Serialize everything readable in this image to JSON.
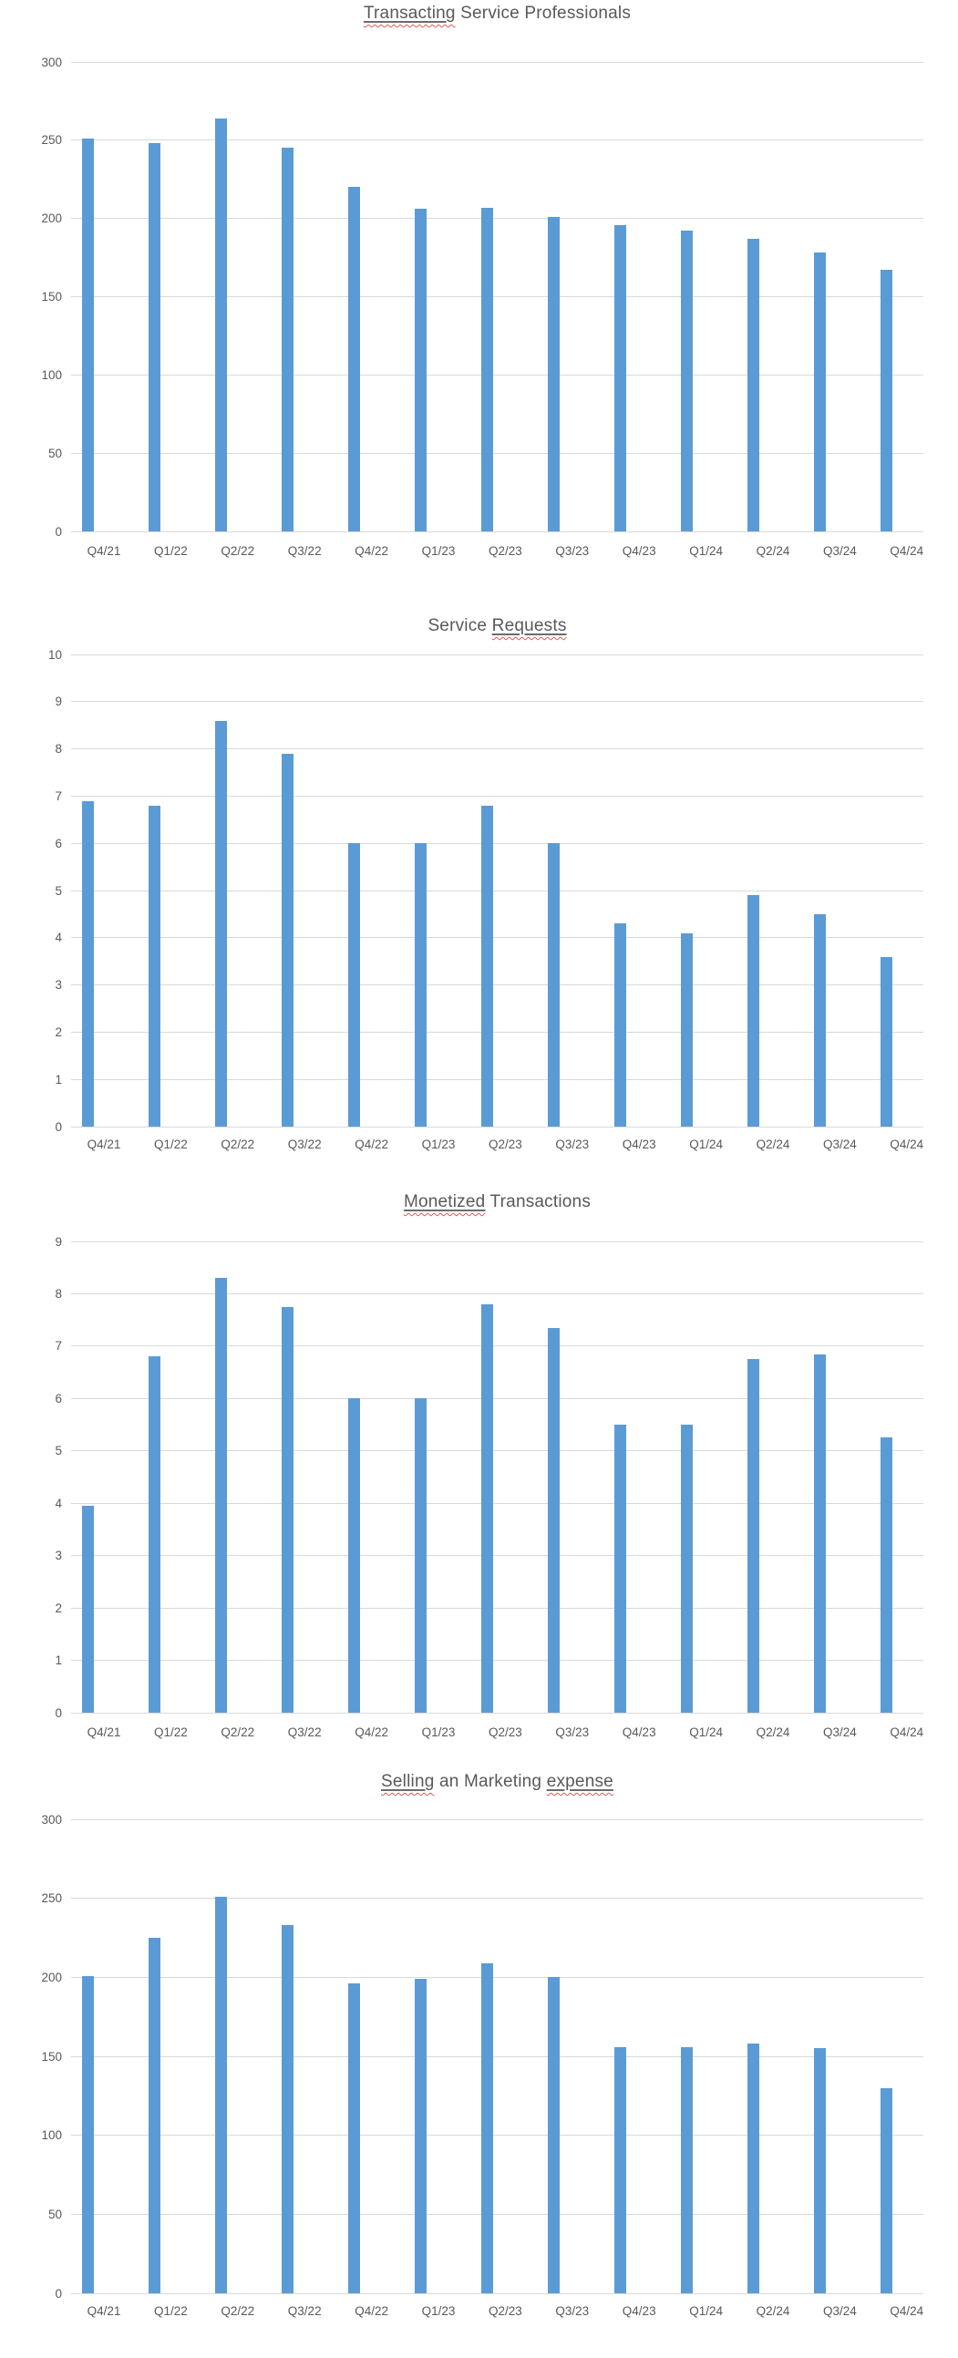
{
  "page": {
    "background": "#ffffff"
  },
  "palette": {
    "bar_fill": "#5b9bd5",
    "gridline": "#d9d9d9",
    "axis_text": "#595959",
    "title_text": "#595959",
    "spellcheck_squiggle": "#e05a52"
  },
  "chart_data": [
    {
      "type": "bar",
      "title": "Transacting Service Professionals",
      "title_parts": [
        {
          "text": "Transacting",
          "flagged": true
        },
        {
          "text": " Service Professionals",
          "flagged": false
        }
      ],
      "categories": [
        "Q4/21",
        "Q1/22",
        "Q2/22",
        "Q3/22",
        "Q4/22",
        "Q1/23",
        "Q2/23",
        "Q3/23",
        "Q4/23",
        "Q1/24",
        "Q2/24",
        "Q3/24",
        "Q4/24"
      ],
      "values": [
        251,
        248,
        264,
        245,
        220,
        206,
        207,
        201,
        196,
        192,
        187,
        178,
        167
      ],
      "xlabel": "",
      "ylabel": "",
      "ylim": [
        0,
        300
      ],
      "ytick_step": 50,
      "grid": true,
      "legend": false
    },
    {
      "type": "bar",
      "title": "Service Requests",
      "title_parts": [
        {
          "text": "Service ",
          "flagged": false
        },
        {
          "text": "Requests",
          "flagged": true
        }
      ],
      "categories": [
        "Q4/21",
        "Q1/22",
        "Q2/22",
        "Q3/22",
        "Q4/22",
        "Q1/23",
        "Q2/23",
        "Q3/23",
        "Q4/23",
        "Q1/24",
        "Q2/24",
        "Q3/24",
        "Q4/24"
      ],
      "values": [
        6.9,
        6.8,
        8.6,
        7.9,
        6.0,
        6.0,
        6.8,
        6.0,
        4.3,
        4.1,
        4.9,
        4.5,
        3.6
      ],
      "xlabel": "",
      "ylabel": "",
      "ylim": [
        0,
        10
      ],
      "ytick_step": 1,
      "grid": true,
      "legend": false
    },
    {
      "type": "bar",
      "title": "Monetized Transactions",
      "title_parts": [
        {
          "text": "Monetized",
          "flagged": true
        },
        {
          "text": " Transactions",
          "flagged": false
        }
      ],
      "categories": [
        "Q4/21",
        "Q1/22",
        "Q2/22",
        "Q3/22",
        "Q4/22",
        "Q1/23",
        "Q2/23",
        "Q3/23",
        "Q4/23",
        "Q1/24",
        "Q2/24",
        "Q3/24",
        "Q4/24"
      ],
      "values": [
        3.95,
        6.8,
        8.3,
        7.75,
        6.0,
        6.0,
        7.8,
        7.35,
        5.5,
        5.5,
        6.75,
        6.85,
        5.25
      ],
      "xlabel": "",
      "ylabel": "",
      "ylim": [
        0,
        9
      ],
      "ytick_step": 1,
      "grid": true,
      "legend": false
    },
    {
      "type": "bar",
      "title": "Selling an Marketing expense",
      "title_parts": [
        {
          "text": "Selling",
          "flagged": true
        },
        {
          "text": " an Marketing ",
          "flagged": false
        },
        {
          "text": "expense",
          "flagged": true
        }
      ],
      "categories": [
        "Q4/21",
        "Q1/22",
        "Q2/22",
        "Q3/22",
        "Q4/22",
        "Q1/23",
        "Q2/23",
        "Q3/23",
        "Q4/23",
        "Q1/24",
        "Q2/24",
        "Q3/24",
        "Q4/24"
      ],
      "values": [
        201,
        225,
        251,
        233,
        196,
        199,
        209,
        200,
        156,
        156,
        158,
        155,
        130
      ],
      "xlabel": "",
      "ylabel": "",
      "ylim": [
        0,
        300
      ],
      "ytick_step": 50,
      "grid": true,
      "legend": false
    }
  ]
}
